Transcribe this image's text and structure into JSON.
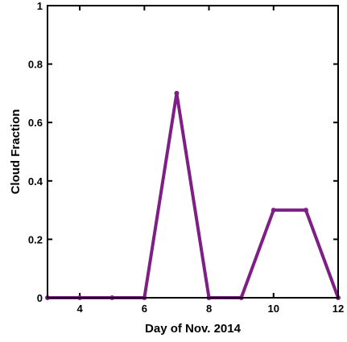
{
  "chart_data": {
    "type": "line",
    "title": "",
    "xlabel": "Day of Nov. 2014",
    "ylabel": "Cloud Fraction",
    "xlim": [
      3,
      12
    ],
    "ylim": [
      0,
      1
    ],
    "x_ticks": [
      4,
      6,
      8,
      10,
      12
    ],
    "y_ticks": [
      0,
      0.2,
      0.4,
      0.6,
      0.8,
      1
    ],
    "y_tick_labels": [
      "0",
      "0.2",
      "0.4",
      "0.6",
      "0.8",
      "1"
    ],
    "grid": false,
    "legend": "none",
    "series": [
      {
        "color": "#7f1f86",
        "marker": "dot",
        "x": [
          3,
          4,
          5,
          6,
          7,
          8,
          9,
          10,
          11,
          12
        ],
        "y": [
          0,
          0,
          0,
          0,
          0.7,
          0,
          0,
          0.3,
          0.3,
          0
        ]
      }
    ]
  }
}
